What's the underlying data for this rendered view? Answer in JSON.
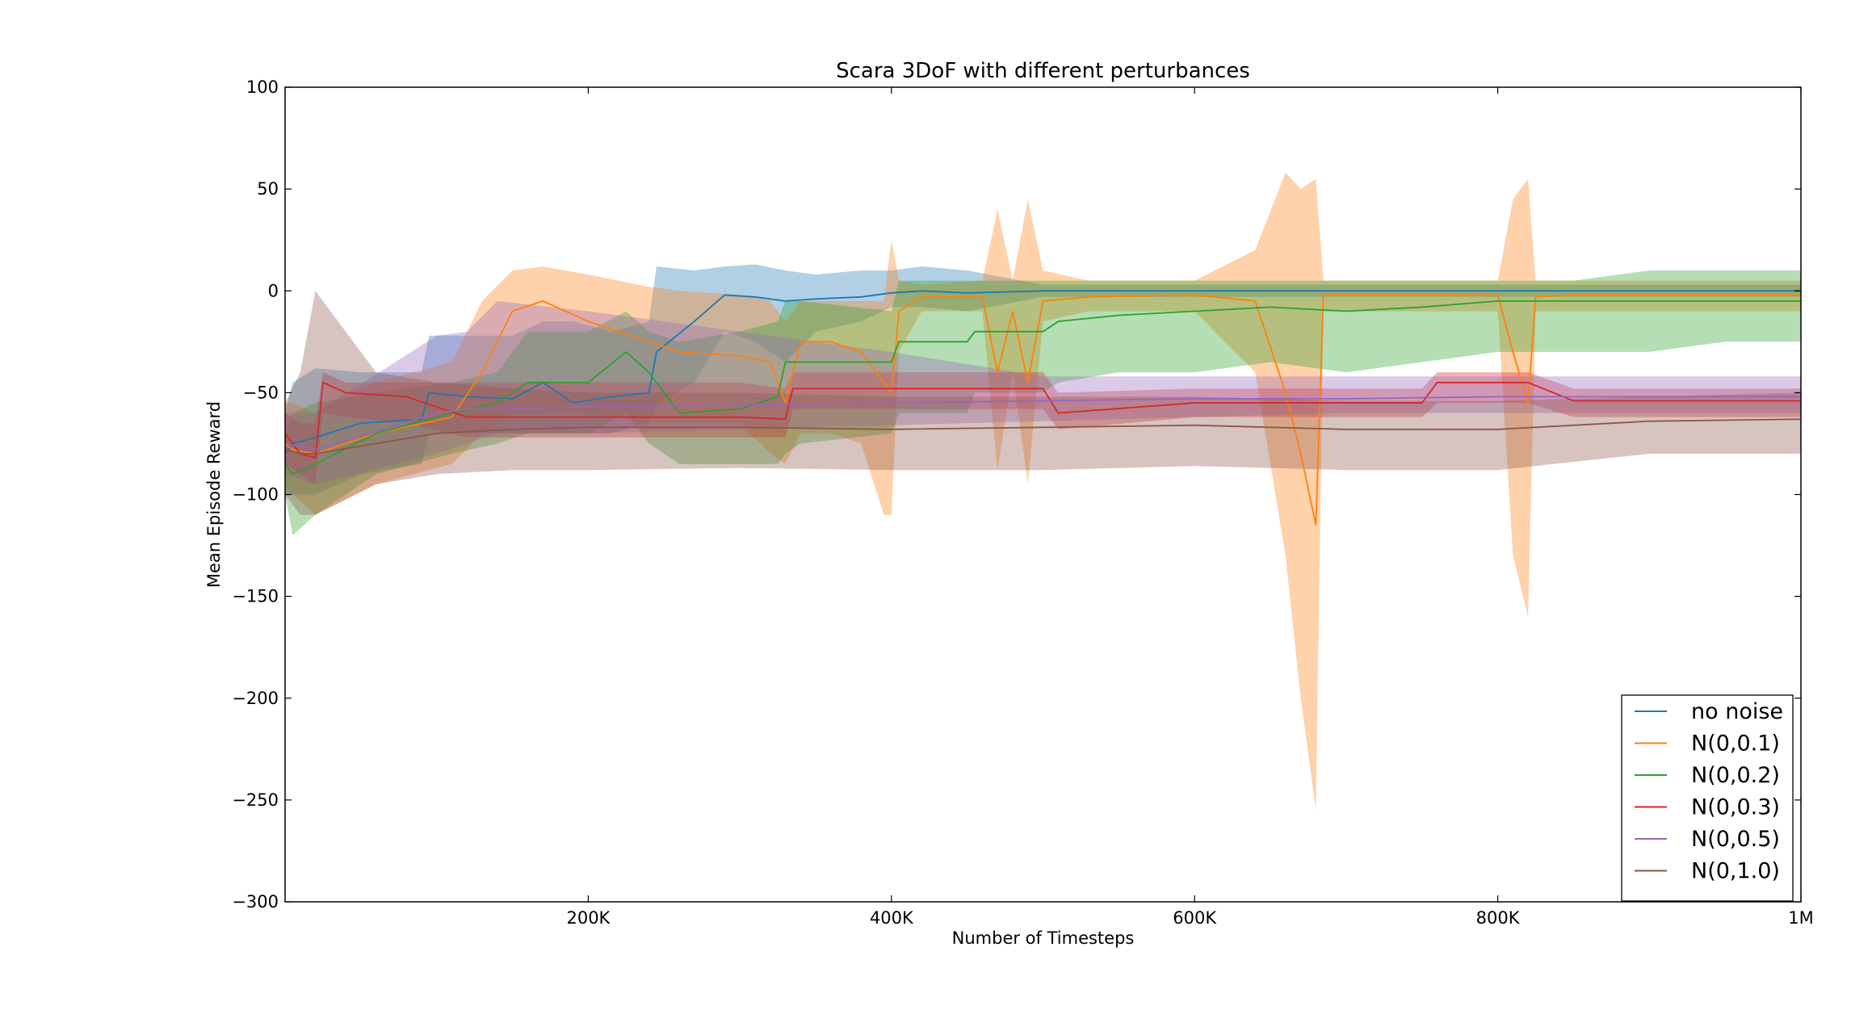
{
  "chart_data": {
    "type": "line",
    "title": "Scara 3DoF with different perturbances",
    "xlabel": "Number of Timesteps",
    "ylabel": "Mean Episode Reward",
    "xlim": [
      0,
      1000000
    ],
    "ylim": [
      -300,
      100
    ],
    "xticks": [
      {
        "value": 200000,
        "label": "200K"
      },
      {
        "value": 400000,
        "label": "400K"
      },
      {
        "value": 600000,
        "label": "600K"
      },
      {
        "value": 800000,
        "label": "800K"
      },
      {
        "value": 1000000,
        "label": "1M"
      }
    ],
    "yticks": [
      {
        "value": 100,
        "label": "100"
      },
      {
        "value": 50,
        "label": "50"
      },
      {
        "value": 0,
        "label": "0"
      },
      {
        "value": -50,
        "label": "−50"
      },
      {
        "value": -100,
        "label": "−100"
      },
      {
        "value": -150,
        "label": "−150"
      },
      {
        "value": -200,
        "label": "−200"
      },
      {
        "value": -250,
        "label": "−250"
      },
      {
        "value": -300,
        "label": "−300"
      }
    ],
    "grid": false,
    "legend_position": "lower-right",
    "series": [
      {
        "name": "no noise",
        "color": "#1f77b4",
        "x": [
          0,
          5000,
          20000,
          50000,
          90000,
          95000,
          120000,
          150000,
          170000,
          190000,
          215000,
          240000,
          245000,
          270000,
          290000,
          310000,
          330000,
          350000,
          380000,
          400000,
          420000,
          450000,
          500000,
          600000,
          700000,
          800000,
          900000,
          1000000
        ],
        "mean": [
          -80,
          -75,
          -72,
          -65,
          -63,
          -50,
          -52,
          -53,
          -45,
          -55,
          -52,
          -50,
          -30,
          -15,
          -2,
          -3,
          -5,
          -4,
          -3,
          -1,
          0,
          -1,
          0,
          0,
          0,
          0,
          0,
          0
        ],
        "upper": [
          -60,
          -45,
          -38,
          -40,
          -40,
          -22,
          -22,
          -22,
          -15,
          -15,
          -20,
          -15,
          12,
          10,
          12,
          13,
          10,
          8,
          10,
          10,
          12,
          10,
          3,
          3,
          3,
          3,
          3,
          3
        ],
        "lower": [
          -100,
          -100,
          -100,
          -90,
          -85,
          -70,
          -70,
          -70,
          -70,
          -70,
          -70,
          -65,
          -55,
          -45,
          -20,
          -25,
          -35,
          -20,
          -15,
          -8,
          -8,
          -10,
          -3,
          -3,
          -3,
          -3,
          -3,
          -3
        ]
      },
      {
        "name": "N(0,0.1)",
        "color": "#ff7f0e",
        "x": [
          0,
          5000,
          20000,
          60000,
          110000,
          130000,
          150000,
          170000,
          200000,
          240000,
          260000,
          300000,
          320000,
          330000,
          340000,
          360000,
          380000,
          395000,
          400000,
          405000,
          420000,
          460000,
          470000,
          480000,
          490000,
          500000,
          530000,
          600000,
          640000,
          660000,
          670000,
          680000,
          685000,
          700000,
          780000,
          800000,
          810000,
          820000,
          825000,
          850000,
          900000,
          1000000
        ],
        "mean": [
          -75,
          -78,
          -80,
          -70,
          -62,
          -40,
          -10,
          -5,
          -15,
          -25,
          -30,
          -32,
          -35,
          -55,
          -25,
          -25,
          -30,
          -45,
          -50,
          -10,
          -3,
          -3,
          -40,
          -10,
          -45,
          -5,
          -3,
          -2,
          -5,
          -50,
          -80,
          -115,
          -2,
          -2,
          -2,
          -2,
          -30,
          -55,
          -3,
          -2,
          -2,
          -2
        ],
        "upper": [
          -55,
          -55,
          -60,
          -45,
          -35,
          -5,
          10,
          12,
          8,
          2,
          0,
          -2,
          -5,
          -15,
          -5,
          -5,
          -5,
          -5,
          25,
          5,
          3,
          5,
          40,
          5,
          45,
          10,
          5,
          5,
          20,
          58,
          50,
          55,
          5,
          5,
          5,
          5,
          45,
          55,
          5,
          5,
          5,
          5
        ],
        "lower": [
          -95,
          -100,
          -110,
          -95,
          -85,
          -70,
          -60,
          -60,
          -60,
          -65,
          -65,
          -65,
          -80,
          -85,
          -70,
          -70,
          -75,
          -110,
          -110,
          -30,
          -10,
          -10,
          -88,
          -40,
          -95,
          -15,
          -10,
          -10,
          -40,
          -130,
          -200,
          -255,
          -10,
          -10,
          -10,
          -10,
          -130,
          -160,
          -10,
          -10,
          -10,
          -10
        ]
      },
      {
        "name": "N(0,0.2)",
        "color": "#2ca02c",
        "x": [
          0,
          5000,
          20000,
          60000,
          110000,
          140000,
          160000,
          200000,
          225000,
          240000,
          260000,
          300000,
          325000,
          330000,
          340000,
          400000,
          405000,
          450000,
          455000,
          500000,
          510000,
          550000,
          600000,
          650000,
          700000,
          750000,
          800000,
          850000,
          900000,
          950000,
          1000000
        ],
        "mean": [
          -85,
          -90,
          -85,
          -70,
          -60,
          -55,
          -45,
          -45,
          -30,
          -40,
          -60,
          -58,
          -52,
          -35,
          -35,
          -35,
          -25,
          -25,
          -20,
          -20,
          -15,
          -12,
          -10,
          -8,
          -10,
          -8,
          -5,
          -5,
          -5,
          -5,
          -5
        ],
        "upper": [
          -70,
          -60,
          -55,
          -50,
          -45,
          -40,
          -20,
          -20,
          -10,
          -20,
          -25,
          -20,
          -15,
          -5,
          -5,
          -10,
          5,
          5,
          5,
          5,
          5,
          5,
          5,
          5,
          5,
          5,
          5,
          5,
          10,
          10,
          10
        ],
        "lower": [
          -100,
          -120,
          -110,
          -90,
          -80,
          -75,
          -70,
          -70,
          -60,
          -75,
          -85,
          -85,
          -85,
          -80,
          -75,
          -70,
          -60,
          -60,
          -50,
          -50,
          -45,
          -40,
          -40,
          -35,
          -40,
          -35,
          -30,
          -30,
          -30,
          -25,
          -25
        ]
      },
      {
        "name": "N(0,0.3)",
        "color": "#d62728",
        "x": [
          0,
          10000,
          20000,
          25000,
          40000,
          80000,
          120000,
          200000,
          300000,
          330000,
          335000,
          400000,
          500000,
          510000,
          600000,
          700000,
          750000,
          760000,
          820000,
          850000,
          1000000
        ],
        "mean": [
          -70,
          -80,
          -82,
          -45,
          -50,
          -52,
          -62,
          -62,
          -62,
          -63,
          -48,
          -48,
          -48,
          -60,
          -55,
          -55,
          -55,
          -45,
          -45,
          -54,
          -54
        ],
        "upper": [
          -60,
          -65,
          -65,
          -40,
          -45,
          -45,
          -45,
          -45,
          -45,
          -48,
          -40,
          -40,
          -40,
          -50,
          -48,
          -48,
          -48,
          -40,
          -40,
          -48,
          -48
        ],
        "lower": [
          -85,
          -90,
          -95,
          -60,
          -62,
          -65,
          -72,
          -72,
          -72,
          -72,
          -58,
          -58,
          -58,
          -68,
          -62,
          -62,
          -62,
          -55,
          -55,
          -62,
          -62
        ]
      },
      {
        "name": "N(0,0.5)",
        "color": "#9467bd",
        "x": [
          0,
          20000,
          100000,
          120000,
          140000,
          200000,
          300000,
          400000,
          500000,
          600000,
          700000,
          800000,
          900000,
          1000000
        ],
        "mean": [
          -75,
          -78,
          -60,
          -58,
          -58,
          -57,
          -56,
          -55,
          -54,
          -53,
          -53,
          -52,
          -52,
          -52
        ],
        "upper": [
          -60,
          -60,
          -22,
          -20,
          -5,
          -10,
          -20,
          -30,
          -42,
          -42,
          -42,
          -42,
          -42,
          -42
        ],
        "lower": [
          -90,
          -95,
          -80,
          -75,
          -70,
          -70,
          -68,
          -66,
          -64,
          -62,
          -60,
          -60,
          -60,
          -60
        ]
      },
      {
        "name": "N(0,1.0)",
        "color": "#8c564b",
        "x": [
          0,
          10000,
          20000,
          60000,
          100000,
          150000,
          200000,
          300000,
          400000,
          500000,
          600000,
          700000,
          800000,
          900000,
          1000000
        ],
        "mean": [
          -78,
          -80,
          -80,
          -75,
          -70,
          -68,
          -67,
          -67,
          -68,
          -67,
          -66,
          -68,
          -68,
          -64,
          -63
        ],
        "upper": [
          -55,
          -40,
          0,
          -40,
          -45,
          -48,
          -50,
          -50,
          -52,
          -52,
          -52,
          -54,
          -54,
          -52,
          -50
        ],
        "lower": [
          -100,
          -110,
          -110,
          -95,
          -90,
          -88,
          -88,
          -87,
          -88,
          -88,
          -86,
          -88,
          -88,
          -80,
          -80
        ]
      }
    ]
  }
}
